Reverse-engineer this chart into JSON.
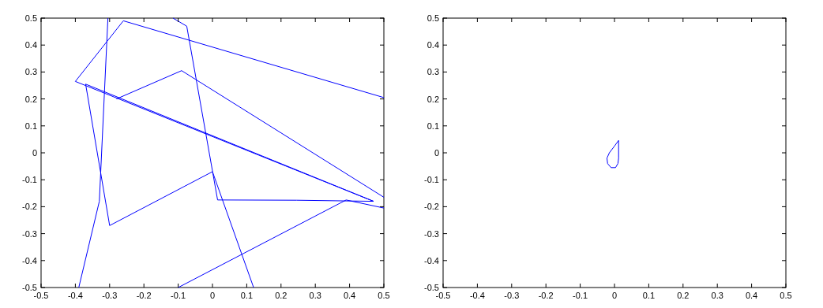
{
  "chart_data": [
    {
      "type": "line",
      "series": [
        {
          "color": "#0000ff",
          "x": [
            -0.39,
            -0.33,
            -0.305
          ],
          "values": [
            -0.5,
            -0.18,
            0.5
          ]
        },
        {
          "color": "#0000ff",
          "x": [
            -0.115,
            -0.075,
            0.015,
            0.245,
            0.47,
            -0.37,
            -0.3,
            0,
            0.12
          ],
          "values": [
            0.5,
            0.47,
            -0.175,
            -0.176,
            -0.18,
            0.255,
            -0.27,
            -0.07,
            -0.5
          ]
        },
        {
          "color": "#0000ff",
          "x": [
            -0.1,
            0.39,
            0.5
          ],
          "values": [
            -0.5,
            -0.175,
            -0.205
          ]
        },
        {
          "color": "#0000ff",
          "x": [
            0.5,
            -0.26,
            -0.4,
            0.47
          ],
          "values": [
            0.205,
            0.49,
            0.265,
            -0.18
          ]
        },
        {
          "color": "#0000ff",
          "x": [
            -0.28,
            -0.09,
            0.5
          ],
          "values": [
            0.2,
            0.305,
            -0.165
          ]
        }
      ],
      "xlim": [
        -0.5,
        0.5
      ],
      "ylim": [
        -0.5,
        0.5
      ],
      "xticks": [
        -0.5,
        -0.4,
        -0.3,
        -0.2,
        -0.1,
        0,
        0.1,
        0.2,
        0.3,
        0.4,
        0.5
      ],
      "yticks": [
        -0.5,
        -0.4,
        -0.3,
        -0.2,
        -0.1,
        0,
        0.1,
        0.2,
        0.3,
        0.4,
        0.5
      ]
    },
    {
      "type": "line",
      "series": [
        {
          "color": "#0000ff",
          "x": [
            0.012,
            0.0,
            -0.015,
            -0.022
          ],
          "values": [
            0.046,
            0.025,
            0.0,
            -0.02
          ]
        },
        {
          "color": "#0000ff",
          "x": [
            -0.022,
            -0.02,
            -0.01,
            0.003,
            0.01,
            0.012,
            0.012
          ],
          "values": [
            -0.02,
            -0.04,
            -0.055,
            -0.055,
            -0.04,
            -0.02,
            0.046
          ]
        }
      ],
      "xlim": [
        -0.5,
        0.5
      ],
      "ylim": [
        -0.5,
        0.5
      ],
      "xticks": [
        -0.5,
        -0.4,
        -0.3,
        -0.2,
        -0.1,
        0,
        0.1,
        0.2,
        0.3,
        0.4,
        0.5
      ],
      "yticks": [
        -0.5,
        -0.4,
        -0.3,
        -0.2,
        -0.1,
        0,
        0.1,
        0.2,
        0.3,
        0.4,
        0.5
      ]
    }
  ]
}
